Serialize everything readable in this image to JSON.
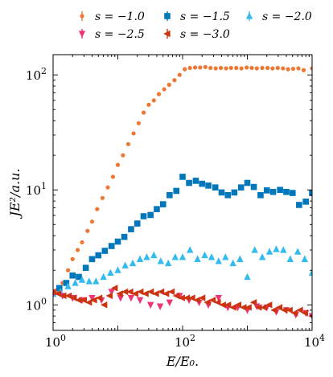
{
  "chart_data": {
    "type": "scatter",
    "xlabel": "E/E₀.",
    "ylabel": "JE²/a.u.",
    "xscale": "log",
    "yscale": "log",
    "xlim": [
      1,
      10000
    ],
    "ylim": [
      0.6,
      150
    ],
    "x_ticks": [
      {
        "value": 1,
        "base": "10",
        "exp": "0"
      },
      {
        "value": 100,
        "base": "10",
        "exp": "2"
      },
      {
        "value": 10000,
        "base": "10",
        "exp": "4"
      }
    ],
    "y_ticks": [
      {
        "value": 1,
        "base": "10",
        "exp": "0"
      },
      {
        "value": 10,
        "base": "10",
        "exp": "1"
      },
      {
        "value": 100,
        "base": "10",
        "exp": "2"
      }
    ],
    "legend_position": "top, above plot, 3 columns",
    "series": [
      {
        "name": "s = −1.0",
        "color": "#ee7733",
        "marker": "circle",
        "points": [
          [
            1.0,
            1.25
          ],
          [
            1.2,
            1.3
          ],
          [
            1.4,
            1.55
          ],
          [
            1.7,
            2.0
          ],
          [
            2.0,
            2.5
          ],
          [
            2.4,
            3.0
          ],
          [
            2.8,
            3.5
          ],
          [
            3.4,
            4.4
          ],
          [
            4.0,
            5.3
          ],
          [
            4.8,
            6.8
          ],
          [
            5.8,
            8.5
          ],
          [
            7.0,
            10.5
          ],
          [
            8.4,
            13.0
          ],
          [
            10.0,
            16.5
          ],
          [
            12,
            20
          ],
          [
            14.5,
            25
          ],
          [
            17.5,
            31
          ],
          [
            21,
            38
          ],
          [
            25,
            47
          ],
          [
            30,
            55
          ],
          [
            36,
            60
          ],
          [
            43,
            68
          ],
          [
            52,
            75
          ],
          [
            62,
            82
          ],
          [
            75,
            90
          ],
          [
            90,
            100
          ],
          [
            108,
            112
          ],
          [
            130,
            115
          ],
          [
            156,
            116
          ],
          [
            187,
            116
          ],
          [
            225,
            117
          ],
          [
            270,
            115
          ],
          [
            325,
            114
          ],
          [
            390,
            115
          ],
          [
            470,
            114
          ],
          [
            560,
            115
          ],
          [
            675,
            115
          ],
          [
            810,
            114
          ],
          [
            975,
            116
          ],
          [
            1170,
            115
          ],
          [
            1400,
            114
          ],
          [
            1700,
            115
          ],
          [
            2050,
            115
          ],
          [
            2450,
            114
          ],
          [
            2950,
            115
          ],
          [
            3550,
            114
          ],
          [
            4250,
            112
          ],
          [
            5100,
            113
          ],
          [
            6150,
            114
          ],
          [
            7400,
            110
          ],
          [
            10000,
            114
          ]
        ]
      },
      {
        "name": "s = −1.5",
        "color": "#0077bb",
        "marker": "square",
        "points": [
          [
            1.0,
            1.25
          ],
          [
            1.25,
            1.4
          ],
          [
            1.6,
            1.55
          ],
          [
            2.0,
            1.8
          ],
          [
            2.5,
            1.75
          ],
          [
            3.2,
            2.1
          ],
          [
            4.0,
            2.5
          ],
          [
            5.0,
            2.7
          ],
          [
            6.3,
            2.95
          ],
          [
            8.0,
            3.25
          ],
          [
            10,
            3.55
          ],
          [
            12.6,
            3.9
          ],
          [
            16,
            4.55
          ],
          [
            20,
            5.1
          ],
          [
            25,
            5.9
          ],
          [
            32,
            6.05
          ],
          [
            40,
            6.8
          ],
          [
            50,
            7.5
          ],
          [
            63,
            9.0
          ],
          [
            80,
            9.8
          ],
          [
            100,
            13.0
          ],
          [
            126,
            11.5
          ],
          [
            160,
            12.0
          ],
          [
            200,
            11.3
          ],
          [
            250,
            10.9
          ],
          [
            320,
            10.5
          ],
          [
            400,
            9.5
          ],
          [
            500,
            9.0
          ],
          [
            630,
            9.5
          ],
          [
            800,
            10.5
          ],
          [
            1000,
            11.5
          ],
          [
            1260,
            10.6
          ],
          [
            1600,
            9.0
          ],
          [
            2000,
            9.9
          ],
          [
            2500,
            9.6
          ],
          [
            3200,
            10.0
          ],
          [
            4000,
            9.6
          ],
          [
            5000,
            9.4
          ],
          [
            6300,
            7.4
          ],
          [
            8000,
            7.9
          ],
          [
            10000,
            9.4
          ]
        ]
      },
      {
        "name": "s = −2.0",
        "color": "#33bbee",
        "marker": "triangle-up",
        "points": [
          [
            1.0,
            1.25
          ],
          [
            1.3,
            1.3
          ],
          [
            1.7,
            1.45
          ],
          [
            2.2,
            1.55
          ],
          [
            2.8,
            1.65
          ],
          [
            3.6,
            1.6
          ],
          [
            4.6,
            1.6
          ],
          [
            6.0,
            1.75
          ],
          [
            7.7,
            1.9
          ],
          [
            10,
            2.0
          ],
          [
            13,
            2.2
          ],
          [
            17,
            2.3
          ],
          [
            22,
            2.5
          ],
          [
            28,
            2.6
          ],
          [
            36,
            2.7
          ],
          [
            46,
            2.4
          ],
          [
            60,
            2.3
          ],
          [
            77,
            2.6
          ],
          [
            100,
            2.6
          ],
          [
            130,
            3.0
          ],
          [
            170,
            2.5
          ],
          [
            220,
            2.7
          ],
          [
            280,
            2.6
          ],
          [
            360,
            2.4
          ],
          [
            460,
            2.6
          ],
          [
            600,
            2.3
          ],
          [
            770,
            2.5
          ],
          [
            1000,
            1.75
          ],
          [
            1300,
            3.0
          ],
          [
            1700,
            2.6
          ],
          [
            2200,
            2.9
          ],
          [
            2800,
            3.05
          ],
          [
            3600,
            3.0
          ],
          [
            4600,
            2.5
          ],
          [
            6000,
            2.9
          ],
          [
            7700,
            2.5
          ],
          [
            10000,
            1.9
          ]
        ]
      },
      {
        "name": "s = −2.5",
        "color": "#ee3377",
        "marker": "triangle-down",
        "points": [
          [
            1.0,
            1.25
          ],
          [
            1.4,
            1.2
          ],
          [
            2.0,
            1.15
          ],
          [
            2.8,
            1.1
          ],
          [
            4.0,
            1.15
          ],
          [
            5.6,
            1.1
          ],
          [
            8.0,
            1.3
          ],
          [
            11,
            1.15
          ],
          [
            16,
            1.15
          ],
          [
            22,
            1.1
          ],
          [
            32,
            1.0
          ],
          [
            45,
            0.97
          ],
          [
            63,
            1.05
          ],
          [
            90,
            1.2
          ],
          [
            126,
            1.1
          ],
          [
            180,
            1.05
          ],
          [
            250,
            1.0
          ],
          [
            360,
            1.15
          ],
          [
            500,
            0.95
          ],
          [
            710,
            0.95
          ],
          [
            1000,
            0.9
          ],
          [
            1400,
            0.97
          ],
          [
            2000,
            0.95
          ],
          [
            2800,
            0.87
          ],
          [
            4000,
            0.9
          ],
          [
            5600,
            0.82
          ],
          [
            8000,
            0.85
          ],
          [
            10000,
            0.8
          ]
        ]
      },
      {
        "name": "s = −3.0",
        "color": "#cc3311",
        "marker": "triangle-left",
        "points": [
          [
            1.0,
            1.3
          ],
          [
            1.2,
            1.25
          ],
          [
            1.45,
            1.2
          ],
          [
            1.75,
            1.2
          ],
          [
            2.1,
            1.15
          ],
          [
            2.5,
            1.1
          ],
          [
            3.0,
            1.1
          ],
          [
            3.6,
            1.05
          ],
          [
            4.3,
            1.1
          ],
          [
            5.2,
            1.15
          ],
          [
            6.2,
            1.0
          ],
          [
            7.5,
            1.2
          ],
          [
            9.0,
            1.4
          ],
          [
            10.8,
            1.25
          ],
          [
            13,
            1.3
          ],
          [
            15.6,
            1.3
          ],
          [
            18.7,
            1.25
          ],
          [
            22.5,
            1.3
          ],
          [
            27,
            1.25
          ],
          [
            32.5,
            1.3
          ],
          [
            39,
            1.25
          ],
          [
            47,
            1.3
          ],
          [
            56,
            1.25
          ],
          [
            68,
            1.3
          ],
          [
            81,
            1.2
          ],
          [
            98,
            1.15
          ],
          [
            117,
            1.15
          ],
          [
            141,
            1.15
          ],
          [
            169,
            1.1
          ],
          [
            203,
            1.15
          ],
          [
            244,
            1.05
          ],
          [
            293,
            1.1
          ],
          [
            352,
            1.05
          ],
          [
            422,
            1.0
          ],
          [
            507,
            1.0
          ],
          [
            608,
            0.95
          ],
          [
            730,
            1.0
          ],
          [
            876,
            0.95
          ],
          [
            1050,
            0.95
          ],
          [
            1260,
            1.05
          ],
          [
            1510,
            0.95
          ],
          [
            1820,
            0.95
          ],
          [
            2180,
            1.0
          ],
          [
            2620,
            0.9
          ],
          [
            3140,
            0.95
          ],
          [
            3770,
            0.9
          ],
          [
            4520,
            0.9
          ],
          [
            5430,
            0.85
          ],
          [
            6520,
            0.9
          ],
          [
            7820,
            0.85
          ],
          [
            10000,
            0.8
          ]
        ]
      }
    ]
  }
}
